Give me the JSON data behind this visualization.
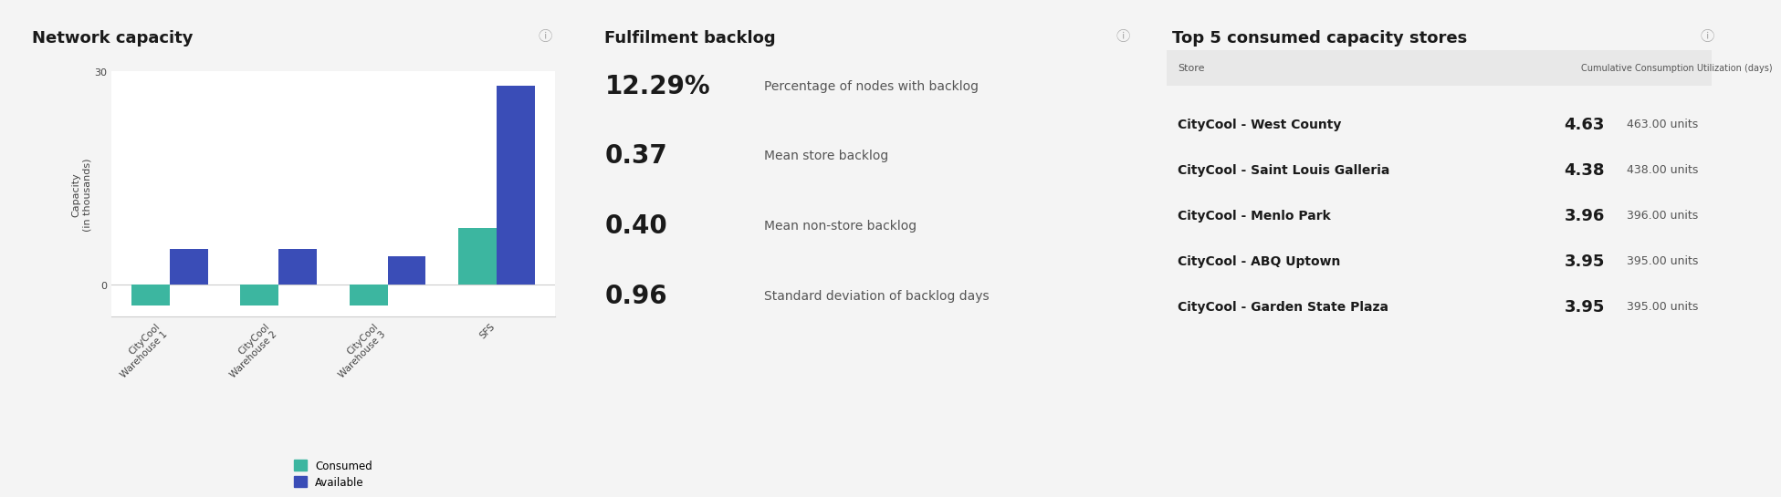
{
  "bg_color": "#f4f4f4",
  "panel_bg": "#ffffff",
  "panel1_title": "Network capacity",
  "panel1_ylabel": "Capacity\n(in thousands)",
  "bar_categories": [
    "CityCool\nWarehouse 1",
    "CityCool\nWarehouse 2",
    "CityCool\nWarehouse 3",
    "SFS"
  ],
  "consumed_values": [
    -3,
    -3,
    -3,
    8
  ],
  "available_values": [
    5,
    5,
    4,
    28
  ],
  "consumed_color": "#3cb6a0",
  "available_color": "#3a4db7",
  "yticks": [
    0,
    30
  ],
  "panel2_title": "Fulfilment backlog",
  "backlog_metrics": [
    {
      "value": "12.29%",
      "label": "Percentage of nodes with backlog"
    },
    {
      "value": "0.37",
      "label": "Mean store backlog"
    },
    {
      "value": "0.40",
      "label": "Mean non-store backlog"
    },
    {
      "value": "0.96",
      "label": "Standard deviation of backlog days"
    }
  ],
  "panel3_title": "Top 5 consumed capacity stores",
  "table_header": [
    "Store",
    "Cumulative Consumption Utilization (days)"
  ],
  "table_rows": [
    {
      "store": "CityCool - West County",
      "value": "4.63",
      "units": "463.00 units"
    },
    {
      "store": "CityCool - Saint Louis Galleria",
      "value": "4.38",
      "units": "438.00 units"
    },
    {
      "store": "CityCool - Menlo Park",
      "value": "3.96",
      "units": "396.00 units"
    },
    {
      "store": "CityCool - ABQ Uptown",
      "value": "3.95",
      "units": "395.00 units"
    },
    {
      "store": "CityCool - Garden State Plaza",
      "value": "3.95",
      "units": "395.00 units"
    }
  ],
  "info_icon_color": "#aaaaaa",
  "title_fontsize": 13,
  "metric_value_fontsize": 20,
  "metric_label_fontsize": 10,
  "table_store_fontsize": 10,
  "table_value_fontsize": 13,
  "table_units_fontsize": 9
}
